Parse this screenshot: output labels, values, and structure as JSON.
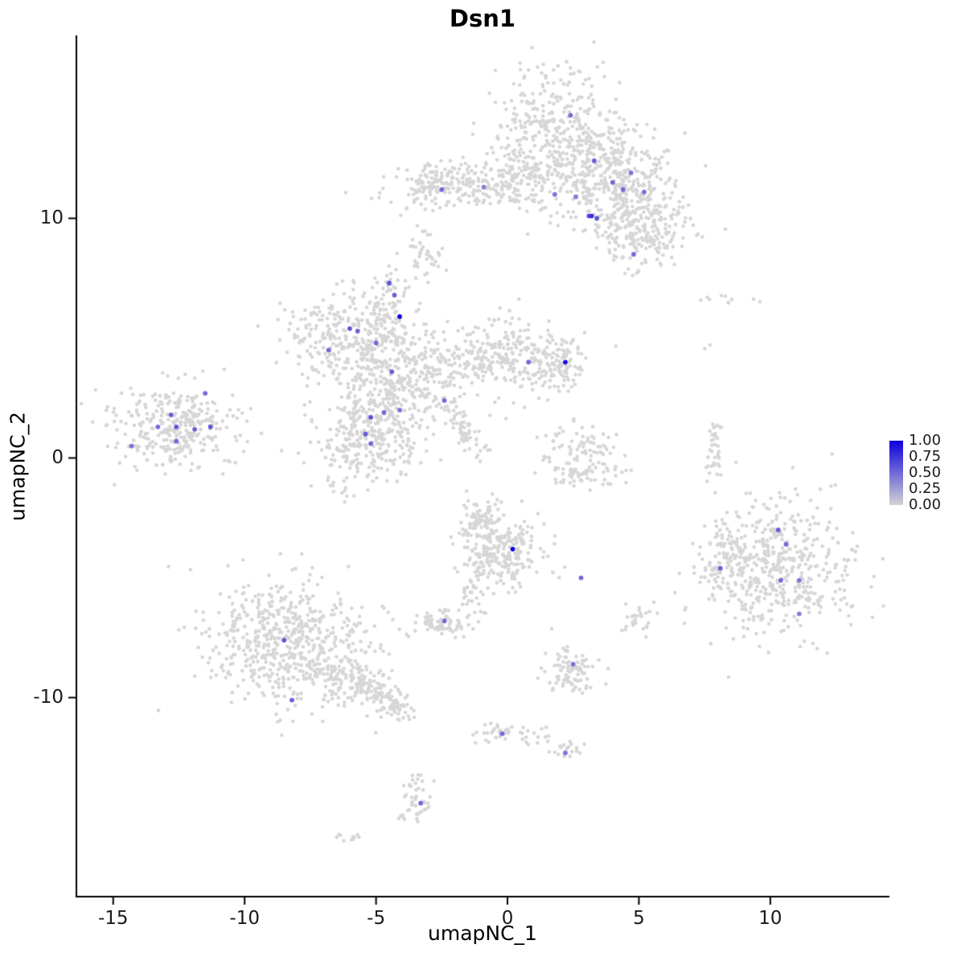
{
  "title": "Dsn1",
  "legend": {
    "labels": [
      "1.00",
      "0.75",
      "0.50",
      "0.25",
      "0.00"
    ],
    "color_high": "#0c00dc",
    "color_low": "#d3d3d3"
  },
  "chart_data": {
    "type": "scatter",
    "title": "Dsn1",
    "xlabel": "umapNC_1",
    "ylabel": "umapNC_2",
    "xlim": [
      -16.4,
      14.5
    ],
    "ylim": [
      -18.3,
      17.6
    ],
    "x_ticks": [
      -15,
      -10,
      -5,
      0,
      5,
      10
    ],
    "y_ticks": [
      10,
      0,
      -10
    ],
    "grid": false,
    "legend_position": "right",
    "background_point_color": "#d6d6d6",
    "seed": 42,
    "clusters": [
      {
        "cx": 1.7,
        "cy": 13.6,
        "sx": 1.4,
        "sy": 1.3,
        "rot": 0,
        "n": 380
      },
      {
        "cx": 3.5,
        "cy": 11.9,
        "sx": 1.2,
        "sy": 1.0,
        "rot": 0,
        "n": 260
      },
      {
        "cx": 4.9,
        "cy": 10.5,
        "sx": 1.0,
        "sy": 1.1,
        "rot": 0,
        "n": 240
      },
      {
        "cx": -1.7,
        "cy": 11.2,
        "sx": 1.5,
        "sy": 0.45,
        "rot": 0,
        "n": 150
      },
      {
        "cx": 0.3,
        "cy": 11.5,
        "sx": 0.8,
        "sy": 0.5,
        "rot": 0,
        "n": 90
      },
      {
        "cx": 5.2,
        "cy": 9.1,
        "sx": 0.8,
        "sy": 0.6,
        "rot": 0,
        "n": 110
      },
      {
        "cx": -2.6,
        "cy": 11.6,
        "sx": 0.5,
        "sy": 0.5,
        "rot": 0,
        "n": 70
      },
      {
        "cx": -3.1,
        "cy": 8.5,
        "sx": 0.4,
        "sy": 0.5,
        "rot": 0,
        "n": 45
      },
      {
        "cx": -4.2,
        "cy": 3.4,
        "sx": 1.2,
        "sy": 1.1,
        "rot": 0,
        "n": 380
      },
      {
        "cx": -4.6,
        "cy": 6.0,
        "sx": 0.5,
        "sy": 0.9,
        "rot": 0,
        "n": 120
      },
      {
        "cx": -6.6,
        "cy": 5.1,
        "sx": 0.95,
        "sy": 0.8,
        "rot": 0,
        "n": 200
      },
      {
        "cx": -0.3,
        "cy": 4.2,
        "sx": 1.3,
        "sy": 0.8,
        "rot": 0,
        "n": 280
      },
      {
        "cx": 1.9,
        "cy": 4.0,
        "sx": 0.55,
        "sy": 0.5,
        "rot": 0,
        "n": 90
      },
      {
        "cx": -5.3,
        "cy": 0.7,
        "sx": 1.05,
        "sy": 0.95,
        "rot": 0,
        "n": 300
      },
      {
        "cx": -1.6,
        "cy": 1.2,
        "sx": 0.8,
        "sy": 0.2,
        "rot": -1.0,
        "n": 60
      },
      {
        "cx": -12.7,
        "cy": 1.3,
        "sx": 1.2,
        "sy": 0.9,
        "rot": 0,
        "n": 320
      },
      {
        "cx": 2.8,
        "cy": 0.3,
        "sx": 0.75,
        "sy": 0.65,
        "rot": 0,
        "n": 90
      },
      {
        "cx": 3.0,
        "cy": -0.7,
        "sx": 0.8,
        "sy": 0.3,
        "rot": 0,
        "n": 45
      },
      {
        "cx": 10.2,
        "cy": -4.5,
        "sx": 1.5,
        "sy": 1.4,
        "rot": 0,
        "n": 520
      },
      {
        "cx": 8.1,
        "cy": -4.4,
        "sx": 0.45,
        "sy": 0.8,
        "rot": 0,
        "n": 60
      },
      {
        "cx": 7.9,
        "cy": 0.2,
        "sx": 0.15,
        "sy": 0.8,
        "rot": 0,
        "n": 35
      },
      {
        "cx": -8.3,
        "cy": -7.7,
        "sx": 1.6,
        "sy": 1.3,
        "rot": 0,
        "n": 600
      },
      {
        "cx": -5.4,
        "cy": -9.6,
        "sx": 1.0,
        "sy": 0.4,
        "rot": -0.46,
        "n": 160
      },
      {
        "cx": -4.2,
        "cy": -10.4,
        "sx": 0.3,
        "sy": 0.3,
        "rot": 0,
        "n": 25
      },
      {
        "cx": -0.3,
        "cy": -3.9,
        "sx": 0.85,
        "sy": 0.85,
        "rot": 0,
        "n": 260
      },
      {
        "cx": -0.9,
        "cy": -2.5,
        "sx": 0.4,
        "sy": 0.45,
        "rot": 0,
        "n": 60
      },
      {
        "cx": -1.4,
        "cy": -5.7,
        "sx": 0.25,
        "sy": 0.5,
        "rot": 0,
        "n": 25
      },
      {
        "cx": -2.5,
        "cy": -6.9,
        "sx": 0.5,
        "sy": 0.3,
        "rot": 0,
        "n": 70
      },
      {
        "cx": 2.5,
        "cy": -8.9,
        "sx": 0.55,
        "sy": 0.55,
        "rot": 0,
        "n": 90
      },
      {
        "cx": 0.0,
        "cy": -11.5,
        "sx": 0.65,
        "sy": 0.25,
        "rot": 0,
        "n": 45
      },
      {
        "cx": 2.3,
        "cy": -12.2,
        "sx": 0.3,
        "sy": 0.2,
        "rot": 0,
        "n": 18
      },
      {
        "cx": -3.5,
        "cy": -14.3,
        "sx": 0.3,
        "sy": 0.6,
        "rot": 0,
        "n": 45
      },
      {
        "cx": -6.0,
        "cy": -15.9,
        "sx": 0.25,
        "sy": 0.15,
        "rot": 0,
        "n": 10
      },
      {
        "cx": 8.2,
        "cy": 6.6,
        "sx": 0.9,
        "sy": 0.15,
        "rot": 0,
        "n": 10
      },
      {
        "cx": 7.6,
        "cy": 4.7,
        "sx": 0.1,
        "sy": 0.1,
        "rot": 0,
        "n": 2
      },
      {
        "cx": 5.0,
        "cy": -6.9,
        "sx": 0.3,
        "sy": 0.35,
        "rot": 0,
        "n": 25
      }
    ],
    "expressed_points": [
      [
        2.4,
        14.3,
        0.5
      ],
      [
        3.3,
        12.4,
        0.55
      ],
      [
        4.0,
        11.5,
        0.5
      ],
      [
        4.7,
        11.9,
        0.45
      ],
      [
        4.4,
        11.2,
        0.5
      ],
      [
        5.2,
        11.1,
        0.45
      ],
      [
        -2.5,
        11.2,
        0.5
      ],
      [
        -0.9,
        11.3,
        0.4
      ],
      [
        1.8,
        11.0,
        0.45
      ],
      [
        2.6,
        10.9,
        0.4
      ],
      [
        3.1,
        10.1,
        0.65
      ],
      [
        3.2,
        10.1,
        0.8
      ],
      [
        3.4,
        10.0,
        0.6
      ],
      [
        4.8,
        8.5,
        0.5
      ],
      [
        -4.5,
        7.3,
        0.6
      ],
      [
        -4.3,
        6.8,
        0.55
      ],
      [
        -4.1,
        5.9,
        1.0
      ],
      [
        -6.0,
        5.4,
        0.6
      ],
      [
        -5.7,
        5.3,
        0.55
      ],
      [
        -5.0,
        4.8,
        0.5
      ],
      [
        -6.8,
        4.5,
        0.5
      ],
      [
        -4.4,
        3.6,
        0.55
      ],
      [
        0.8,
        4.0,
        0.5
      ],
      [
        2.2,
        4.0,
        0.95
      ],
      [
        -2.4,
        2.4,
        0.5
      ],
      [
        -5.2,
        1.7,
        0.6
      ],
      [
        -4.7,
        1.9,
        0.5
      ],
      [
        -4.1,
        2.0,
        0.45
      ],
      [
        -5.4,
        1.0,
        0.55
      ],
      [
        -5.2,
        0.6,
        0.5
      ],
      [
        -11.5,
        2.7,
        0.5
      ],
      [
        -12.8,
        1.8,
        0.55
      ],
      [
        -13.3,
        1.3,
        0.5
      ],
      [
        -12.6,
        1.3,
        0.6
      ],
      [
        -11.9,
        1.2,
        0.55
      ],
      [
        -11.3,
        1.3,
        0.6
      ],
      [
        -12.6,
        0.7,
        0.5
      ],
      [
        -14.3,
        0.5,
        0.45
      ],
      [
        0.2,
        -3.8,
        1.0
      ],
      [
        2.8,
        -5.0,
        0.5
      ],
      [
        10.3,
        -3.0,
        0.55
      ],
      [
        10.6,
        -3.6,
        0.5
      ],
      [
        8.1,
        -4.6,
        0.55
      ],
      [
        10.4,
        -5.1,
        0.5
      ],
      [
        11.1,
        -5.1,
        0.45
      ],
      [
        11.1,
        -6.5,
        0.4
      ],
      [
        -2.4,
        -6.8,
        0.5
      ],
      [
        -8.5,
        -7.6,
        0.6
      ],
      [
        2.5,
        -8.6,
        0.45
      ],
      [
        -8.2,
        -10.1,
        0.55
      ],
      [
        -0.2,
        -11.5,
        0.5
      ],
      [
        2.2,
        -12.3,
        0.45
      ],
      [
        -3.3,
        -14.4,
        0.5
      ]
    ]
  }
}
